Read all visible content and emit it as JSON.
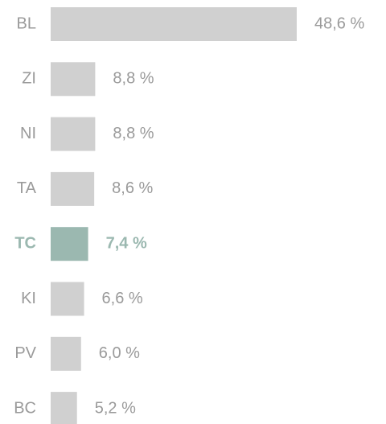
{
  "chart_data": {
    "type": "bar",
    "orientation": "horizontal",
    "categories": [
      "BL",
      "ZI",
      "NI",
      "TA",
      "TC",
      "KI",
      "PV",
      "BC"
    ],
    "values": [
      48.6,
      8.8,
      8.8,
      8.6,
      7.4,
      6.6,
      6.0,
      5.2
    ],
    "value_labels": [
      "48,6 %",
      "8,8 %",
      "8,8 %",
      "8,6 %",
      "7,4 %",
      "6,6 %",
      "6,0 %",
      "5,2 %"
    ],
    "color": "#d0d0d0",
    "highlight": "TC",
    "highlight_color": "#9bb8b0"
  }
}
